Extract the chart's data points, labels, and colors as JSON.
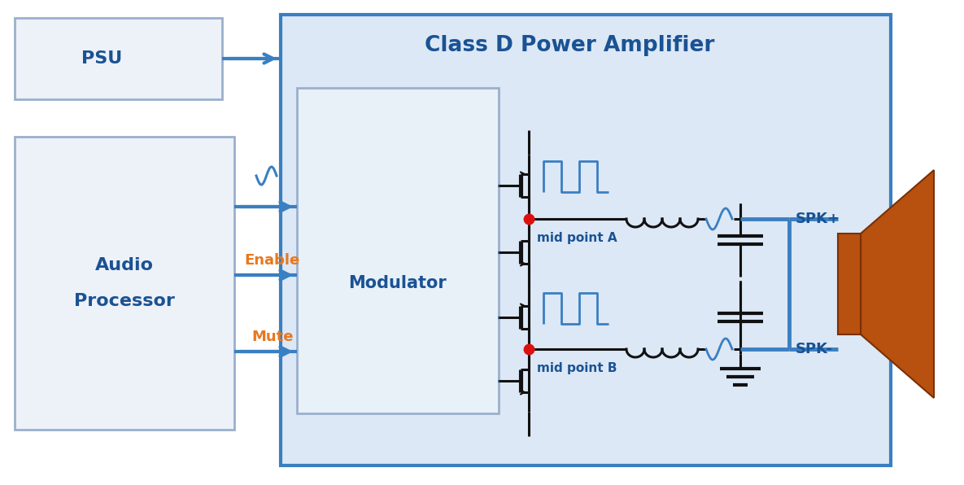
{
  "blue_dark": "#1a5294",
  "blue_mid": "#3a7fc1",
  "blue_light": "#c8d8ee",
  "blue_box_fill": "#dce8f5",
  "blue_box_fill2": "#e8f0f8",
  "orange": "#e87820",
  "black": "#111111",
  "red_dot": "#dd1010",
  "brown": "#b85010",
  "brown_dark": "#7a3005",
  "white": "#ffffff",
  "gray_box": "#edf1f8",
  "gray_border": "#9ab0cc",
  "title": "Class D Power Amplifier",
  "psu_label": "PSU",
  "audio_label1": "Audio",
  "audio_label2": "Processor",
  "modulator_label": "Modulator",
  "enable_label": "Enable",
  "mute_label": "Mute",
  "mid_a_label": "mid point A",
  "mid_b_label": "mid point B",
  "spk_plus": "SPK+",
  "spk_minus": "SPK-"
}
